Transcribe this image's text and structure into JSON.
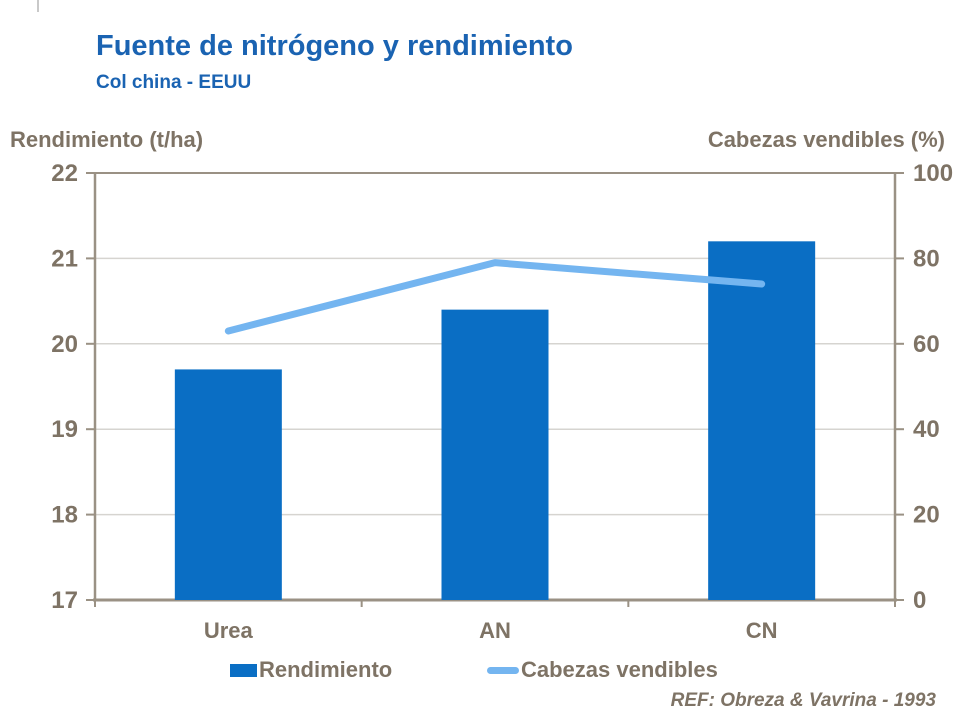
{
  "header": {
    "title": "Fuente de nitrógeno y rendimiento",
    "subtitle": "Col china - EEUU"
  },
  "footer": {
    "ref": "REF: Obreza & Vavrina - 1993"
  },
  "colors": {
    "title_blue": "#1a63b2",
    "bar_blue": "#0a6ec4",
    "line_blue": "#74b5f0",
    "axis_text": "#7e7365",
    "frame": "#9a9184",
    "gridline": "#d6d4d0"
  },
  "chart_data": {
    "type": "bar",
    "categories": [
      "Urea",
      "AN",
      "CN"
    ],
    "series": [
      {
        "name": "Rendimiento",
        "type": "bar",
        "axis": "left",
        "values": [
          19.7,
          20.4,
          21.2
        ]
      },
      {
        "name": "Cabezas vendibles",
        "type": "line",
        "axis": "right",
        "values": [
          63,
          79,
          74
        ]
      }
    ],
    "left_axis": {
      "label": "Rendimiento (t/ha)",
      "min": 17,
      "max": 22,
      "ticks": [
        17,
        18,
        19,
        20,
        21,
        22
      ]
    },
    "right_axis": {
      "label": "Cabezas vendibles (%)",
      "min": 0,
      "max": 100,
      "ticks": [
        0,
        20,
        40,
        60,
        80,
        100
      ]
    },
    "grid": true,
    "legend_position": "bottom"
  }
}
